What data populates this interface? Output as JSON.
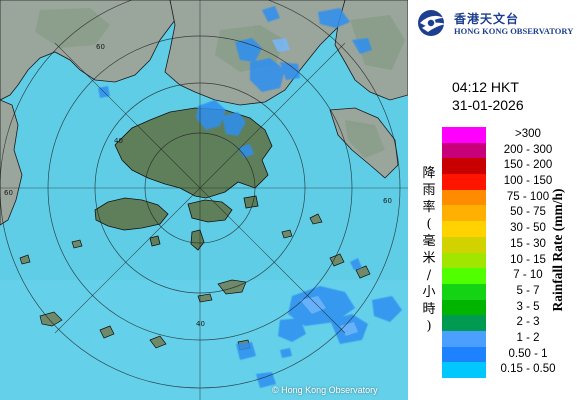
{
  "logo": {
    "icon": "hong-kong-observatory-logo",
    "name_zh": "香港天文台",
    "name_en": "HONG KONG OBSERVATORY"
  },
  "time": "04:12 HKT",
  "date": "31-01-2026",
  "map": {
    "range_ring_labels": [
      "40",
      "60"
    ],
    "copyright": "© Hong Kong Observatory",
    "colors": {
      "sea": "#5fcde6",
      "land": "#9aa59c",
      "island": "#5f7f5a"
    }
  },
  "legend": {
    "unit_zh": "降雨率(毫米/小時)",
    "unit_en": "Rainfall Rate (mm/h)",
    "classes": [
      {
        "label": ">300",
        "color": "#ff00ff"
      },
      {
        "label": "200 - 300",
        "color": "#c8007a"
      },
      {
        "label": "150 - 200",
        "color": "#c80000"
      },
      {
        "label": "100 - 150",
        "color": "#ff1400"
      },
      {
        "label": "75 - 100",
        "color": "#ff8c00"
      },
      {
        "label": "50 - 75",
        "color": "#ffb000"
      },
      {
        "label": "30 - 50",
        "color": "#ffd200"
      },
      {
        "label": "15 - 30",
        "color": "#d2d200"
      },
      {
        "label": "10 - 15",
        "color": "#a0e600"
      },
      {
        "label": "7 - 10",
        "color": "#50ff00"
      },
      {
        "label": "5 - 7",
        "color": "#14d214"
      },
      {
        "label": "3 - 5",
        "color": "#00b400"
      },
      {
        "label": "2 - 3",
        "color": "#009a50"
      },
      {
        "label": "1 - 2",
        "color": "#4ba0ff"
      },
      {
        "label": "0.50 - 1",
        "color": "#1e82ff"
      },
      {
        "label": "0.15 - 0.50",
        "color": "#00c8ff"
      }
    ]
  }
}
